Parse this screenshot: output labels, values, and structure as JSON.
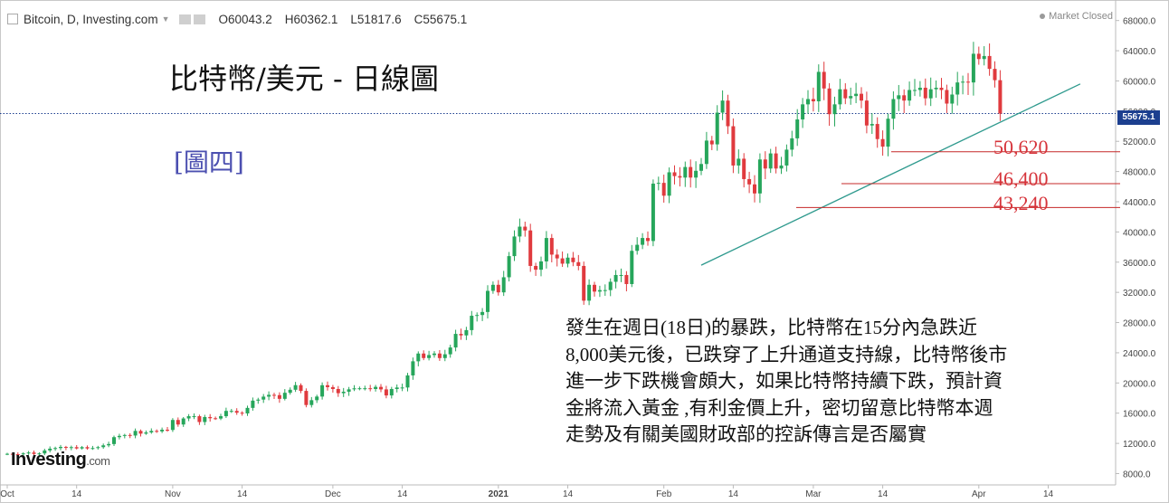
{
  "header": {
    "symbol": "Bitcoin, D, Investing.com",
    "o": "O60043.2",
    "h": "H60362.1",
    "l": "L51817.6",
    "c": "C55675.1",
    "status": "Market Closed"
  },
  "overlay": {
    "title": "比特幣/美元 - 日線圖",
    "tag": "[圖四]",
    "support_labels": [
      "50,620",
      "46,400",
      "43,240"
    ],
    "note_lines": [
      "發生在週日(18日)的暴跌，比特幣在15分內急跌近",
      "8,000美元後，已跌穿了上升通道支持線，比特幣後市",
      "進一步下跌機會頗大，如果比特幣持續下跌，預計資",
      "金將流入黃金 ,有利金價上升，密切留意比特幣本週",
      "走勢及有關美國財政部的控訴傳言是否屬實"
    ],
    "logo_main": "Investing",
    "logo_suffix": ".com",
    "last_price": "55675.1"
  },
  "chart_data": {
    "type": "candlestick",
    "y_ticks": [
      8000,
      12000,
      16000,
      20000,
      24000,
      28000,
      32000,
      36000,
      40000,
      44000,
      48000,
      52000,
      56000,
      60000,
      64000,
      68000
    ],
    "y_tick_labels": [
      "8000.0",
      "12000.0",
      "16000.0",
      "20000.0",
      "24000.0",
      "28000.0",
      "32000.0",
      "36000.0",
      "40000.0",
      "44000.0",
      "48000.0",
      "52000.0",
      "56000.0",
      "60000.0",
      "64000.0",
      "68000.0"
    ],
    "ylim": [
      6500,
      70000
    ],
    "start_date": "2020-10-01",
    "x_ticks": [
      {
        "date": "2020-10-01",
        "label": "Oct"
      },
      {
        "date": "2020-10-14",
        "label": "14"
      },
      {
        "date": "2020-11-01",
        "label": "Nov"
      },
      {
        "date": "2020-11-14",
        "label": "14"
      },
      {
        "date": "2020-12-01",
        "label": "Dec"
      },
      {
        "date": "2020-12-14",
        "label": "14"
      },
      {
        "date": "2021-01-01",
        "label": "2021"
      },
      {
        "date": "2021-01-14",
        "label": "14"
      },
      {
        "date": "2021-02-01",
        "label": "Feb"
      },
      {
        "date": "2021-02-14",
        "label": "14"
      },
      {
        "date": "2021-03-01",
        "label": "Mar"
      },
      {
        "date": "2021-03-14",
        "label": "14"
      },
      {
        "date": "2021-04-01",
        "label": "Apr"
      },
      {
        "date": "2021-04-14",
        "label": "14"
      }
    ],
    "close": [
      10620,
      10570,
      10550,
      10670,
      10790,
      10600,
      10670,
      11060,
      11300,
      11380,
      11530,
      11420,
      11500,
      11330,
      11500,
      11330,
      11380,
      11500,
      11740,
      11910,
      12820,
      12990,
      13110,
      13040,
      13650,
      13290,
      13450,
      13650,
      13590,
      13810,
      13780,
      15100,
      14500,
      15300,
      15600,
      15600,
      14830,
      15490,
      15330,
      15290,
      15600,
      16300,
      16300,
      16060,
      15970,
      16700,
      17660,
      17800,
      18190,
      18430,
      18390,
      17900,
      18700,
      19100,
      19710,
      18950,
      17080,
      17720,
      18200,
      19700,
      19450,
      19200,
      18650,
      18840,
      19160,
      19290,
      19300,
      19300,
      19200,
      19480,
      19150,
      18350,
      19200,
      19400,
      19400,
      21000,
      22870,
      23900,
      23300,
      23700,
      23900,
      23300,
      23800,
      24700,
      26500,
      26300,
      27000,
      28900,
      29000,
      29400,
      32200,
      33000,
      32000,
      34000,
      36800,
      39400,
      40700,
      40200,
      35500,
      35000,
      36100,
      39200,
      37000,
      36500,
      35800,
      36600,
      36000,
      35500,
      30900,
      33000,
      32100,
      32300,
      32300,
      33400,
      34300,
      34300,
      33100,
      37500,
      38300,
      39200,
      38800,
      46400,
      46500,
      44800,
      47900,
      47400,
      47200,
      48600,
      47200,
      48100,
      49000,
      52100,
      51600,
      55800,
      57400,
      54000,
      48800,
      49700,
      47000,
      46300,
      45100,
      49600,
      48400,
      50400,
      48400,
      48800,
      50900,
      52400,
      54900,
      56900,
      57600,
      57300,
      61200,
      59000,
      55600,
      56900,
      58900,
      57700,
      58000,
      58300,
      57400,
      54100,
      54300,
      52300,
      51300,
      55000,
      57600,
      58100,
      57400,
      58800,
      58800,
      59100,
      57700,
      58900,
      59100,
      58800,
      57000,
      58200,
      59800,
      59900,
      59800,
      63600,
      62900,
      63300,
      61600,
      60100,
      55675.1
    ],
    "x_domain_days": [
      0,
      209
    ],
    "trendline": {
      "start": {
        "date": "2021-02-08",
        "value": 35600
      },
      "end": {
        "date": "2021-04-20",
        "value": 59600
      }
    },
    "support_levels": [
      50620,
      46400,
      43240
    ],
    "last_price_line": 55675.1,
    "colors": {
      "up": "#26a65b",
      "down": "#e03a3e",
      "trend": "#2f9a8e",
      "support": "#c62828",
      "price_line": "#1c3f8f"
    }
  }
}
